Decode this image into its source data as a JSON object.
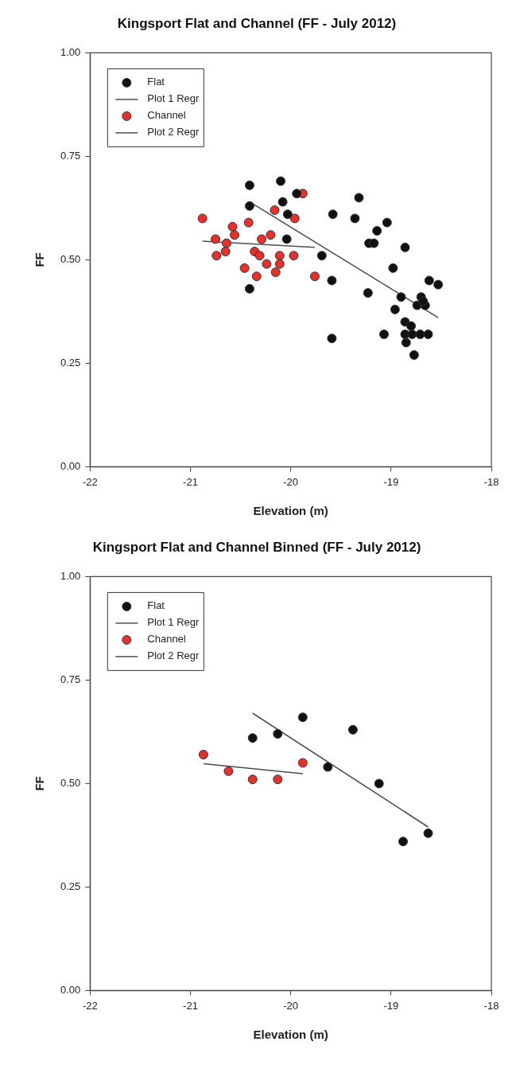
{
  "chart_data": [
    {
      "type": "scatter",
      "title": "Kingsport Flat and Channel (FF - July 2012)",
      "xlabel": "Elevation (m)",
      "ylabel": "FF",
      "xlim": [
        -22,
        -18
      ],
      "xticks": [
        -22,
        -21,
        -20,
        -19,
        -18
      ],
      "ylim": [
        0,
        1
      ],
      "yticks": [
        {
          "value": 0,
          "label": "0.00"
        },
        {
          "value": 0.25,
          "label": "0.25"
        },
        {
          "value": 0.5,
          "label": "0.50"
        },
        {
          "value": 0.75,
          "label": "0.75"
        },
        {
          "value": 1,
          "label": "1.00"
        }
      ],
      "grid": false,
      "legend": "top left",
      "series": [
        {
          "name": "Flat",
          "type": "scatter",
          "marker": "circle",
          "color": "#111111",
          "x": [
            -20.41,
            -20.1,
            -19.94,
            -20.08,
            -20.41,
            -20.03,
            -20.04,
            -19.69,
            -19.59,
            -20.41,
            -19.59,
            -19.58,
            -19.32,
            -19.36,
            -19.04,
            -19.14,
            -19.22,
            -19.17,
            -18.86,
            -18.98,
            -19.23,
            -18.9,
            -18.62,
            -18.53,
            -18.7,
            -18.74,
            -18.66,
            -18.68,
            -18.96,
            -18.86,
            -18.8,
            -19.07,
            -18.86,
            -18.79,
            -18.71,
            -18.63,
            -18.85,
            -18.77
          ],
          "values": [
            0.68,
            0.69,
            0.66,
            0.64,
            0.63,
            0.61,
            0.55,
            0.51,
            0.45,
            0.43,
            0.31,
            0.61,
            0.65,
            0.6,
            0.59,
            0.57,
            0.54,
            0.54,
            0.53,
            0.48,
            0.42,
            0.41,
            0.45,
            0.44,
            0.41,
            0.39,
            0.39,
            0.4,
            0.38,
            0.35,
            0.34,
            0.32,
            0.32,
            0.32,
            0.32,
            0.32,
            0.3,
            0.27
          ]
        },
        {
          "name": "Plot 1 Regr",
          "type": "line",
          "marker": "none",
          "color": "#4d4d4d",
          "x": [
            -20.41,
            -18.53
          ],
          "values": [
            0.64,
            0.36
          ]
        },
        {
          "name": "Channel",
          "type": "scatter",
          "marker": "circle",
          "color": "#e8302a",
          "x": [
            -20.88,
            -19.88,
            -20.16,
            -19.96,
            -20.42,
            -20.58,
            -20.56,
            -20.2,
            -20.75,
            -20.29,
            -20.64,
            -20.65,
            -20.74,
            -20.36,
            -20.31,
            -20.11,
            -19.97,
            -20.24,
            -20.11,
            -20.46,
            -20.15,
            -20.34,
            -19.76
          ],
          "values": [
            0.6,
            0.66,
            0.62,
            0.6,
            0.59,
            0.58,
            0.56,
            0.56,
            0.55,
            0.55,
            0.54,
            0.52,
            0.51,
            0.52,
            0.51,
            0.51,
            0.51,
            0.49,
            0.49,
            0.48,
            0.47,
            0.46,
            0.46
          ]
        },
        {
          "name": "Plot 2 Regr",
          "type": "line",
          "marker": "none",
          "color": "#4d4d4d",
          "x": [
            -20.88,
            -19.76
          ],
          "values": [
            0.545,
            0.53
          ]
        }
      ]
    },
    {
      "type": "scatter",
      "title": "Kingsport Flat and Channel Binned (FF - July 2012)",
      "xlabel": "Elevation (m)",
      "ylabel": "FF",
      "xlim": [
        -22,
        -18
      ],
      "xticks": [
        -22,
        -21,
        -20,
        -19,
        -18
      ],
      "ylim": [
        0,
        1
      ],
      "yticks": [
        {
          "value": 0,
          "label": "0.00"
        },
        {
          "value": 0.25,
          "label": "0.25"
        },
        {
          "value": 0.5,
          "label": "0.50"
        },
        {
          "value": 0.75,
          "label": "0.75"
        },
        {
          "value": 1,
          "label": "1.00"
        }
      ],
      "grid": false,
      "legend": "top left",
      "series": [
        {
          "name": "Flat",
          "type": "scatter",
          "marker": "circle",
          "color": "#111111",
          "x": [
            -19.88,
            -19.38,
            -20.13,
            -20.38,
            -19.63,
            -19.12,
            -18.63,
            -18.88
          ],
          "values": [
            0.66,
            0.63,
            0.62,
            0.61,
            0.54,
            0.5,
            0.38,
            0.36
          ]
        },
        {
          "name": "Plot 1 Regr",
          "type": "line",
          "marker": "none",
          "color": "#4d4d4d",
          "x": [
            -20.38,
            -18.63
          ],
          "values": [
            0.67,
            0.395
          ]
        },
        {
          "name": "Channel",
          "type": "scatter",
          "marker": "circle",
          "color": "#e8302a",
          "x": [
            -20.87,
            -20.62,
            -20.38,
            -20.13,
            -19.88
          ],
          "values": [
            0.57,
            0.53,
            0.51,
            0.51,
            0.55
          ]
        },
        {
          "name": "Plot 2 Regr",
          "type": "line",
          "marker": "none",
          "color": "#4d4d4d",
          "x": [
            -20.87,
            -19.88
          ],
          "values": [
            0.548,
            0.524
          ]
        }
      ]
    }
  ]
}
